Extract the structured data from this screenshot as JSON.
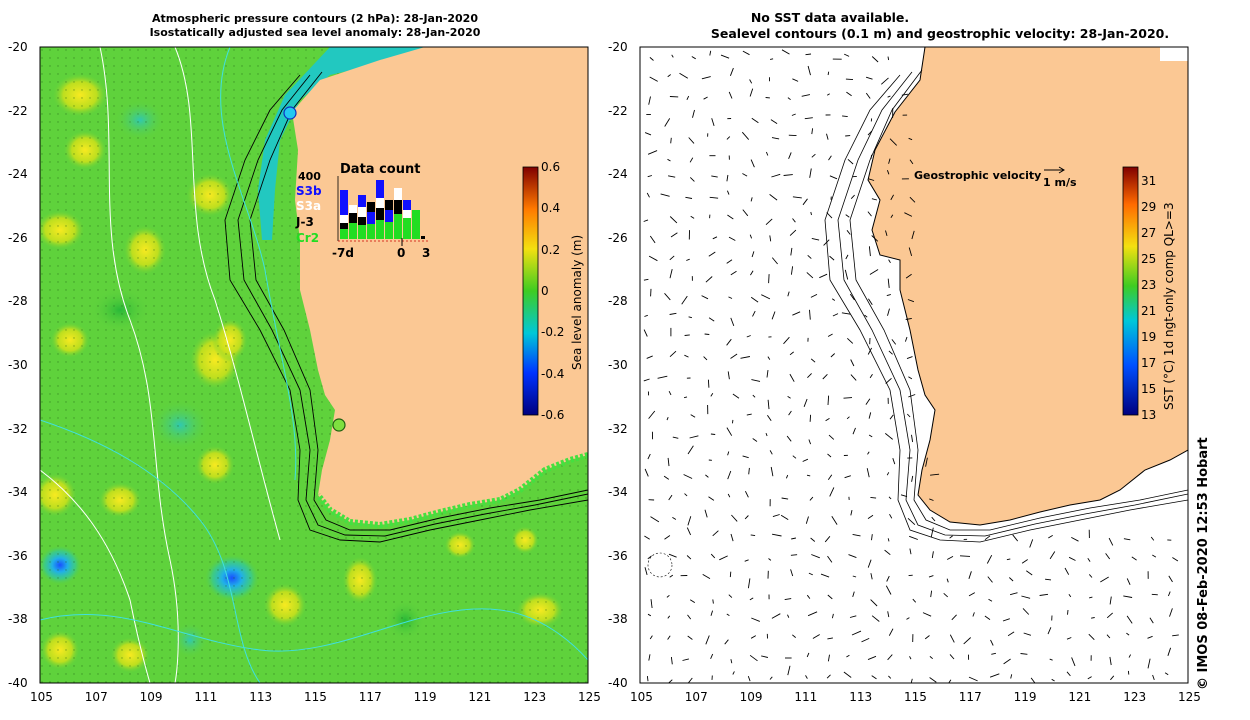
{
  "left_panel": {
    "title_line1": "Atmospheric pressure contours (2 hPa): 28-Jan-2020",
    "title_line2": "Isostatically adjusted sea level anomaly: 28-Jan-2020",
    "colorbar_label": "Sea level anomaly (m)",
    "colorbar_ticks": [
      "0.6",
      "0.4",
      "0.2",
      "0",
      "-0.2",
      "-0.4",
      "-0.6"
    ],
    "data_count": {
      "title": "Data count",
      "max_label": "400",
      "legend": [
        {
          "name": "S3b",
          "color": "#1010ff"
        },
        {
          "name": "S3a",
          "color": "#ffffff"
        },
        {
          "name": "J-3",
          "color": "#000000"
        },
        {
          "name": "Cr2",
          "color": "#22dd22"
        }
      ],
      "x_ticks": [
        "-7d",
        "0",
        "3"
      ]
    }
  },
  "right_panel": {
    "title_line1": "No SST data available.",
    "title_line2": "Sealevel contours (0.1 m) and geostrophic velocity: 28-Jan-2020.",
    "velocity_label": "Geostrophic velocity",
    "velocity_scale": "1 m/s",
    "colorbar_label": "SST (°C) 1d ngt-only comp QL>=3",
    "colorbar_ticks": [
      "31",
      "29",
      "27",
      "25",
      "23",
      "21",
      "19",
      "17",
      "15",
      "13"
    ]
  },
  "axes": {
    "x_ticks": [
      "105",
      "107",
      "109",
      "111",
      "113",
      "115",
      "117",
      "119",
      "121",
      "123",
      "125"
    ],
    "y_ticks": [
      "-20",
      "-22",
      "-24",
      "-26",
      "-28",
      "-30",
      "-32",
      "-34",
      "-36",
      "-38",
      "-40"
    ]
  },
  "footer": {
    "credit": "© IMOS 08-Feb-2020 12:53 Hobart"
  },
  "colors": {
    "land": "#fbc894",
    "ocean_base": "#5fd23c",
    "coast_cyan": "#22c8c0"
  }
}
